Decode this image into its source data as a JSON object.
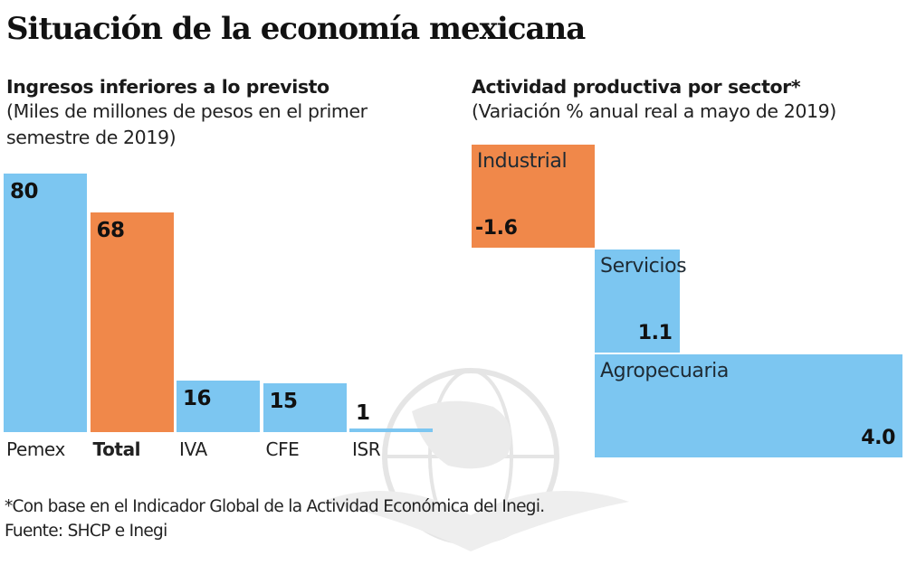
{
  "title": "Situación de la economía mexicana",
  "left_panel": {
    "heading": "Ingresos inferiores a lo previsto",
    "description": "(Miles de millones de pesos en el primer semestre de 2019)"
  },
  "right_panel": {
    "heading": "Actividad productiva por sector*",
    "description": "(Variación % anual real a mayo de 2019)"
  },
  "footnote": "*Con base en el Indicador Global de la Actividad Económica del Inegi.",
  "source": "Fuente: SHCP e Inegi",
  "colors": {
    "blue": "#7cc6f1",
    "orange": "#f0884a"
  },
  "chart_data": [
    {
      "type": "bar",
      "title": "Ingresos inferiores a lo previsto",
      "subtitle": "(Miles de millones de pesos en el primer semestre de 2019)",
      "xlabel": "",
      "ylabel": "Miles de millones de pesos",
      "categories": [
        "Pemex",
        "Total",
        "IVA",
        "CFE",
        "ISR"
      ],
      "values": [
        80,
        68,
        16,
        15,
        1
      ],
      "labels": [
        "80",
        "68",
        "16",
        "15",
        "1"
      ],
      "highlight": [
        "blue",
        "orange",
        "blue",
        "blue",
        "blue"
      ],
      "ylim": [
        0,
        80
      ],
      "grid": false
    },
    {
      "type": "bar",
      "title": "Actividad productiva por sector*",
      "subtitle": "(Variación % anual real a mayo de 2019)",
      "xlabel": "",
      "ylabel": "Variación % anual real",
      "categories": [
        "Industrial",
        "Servicios",
        "Agropecuaria"
      ],
      "values": [
        -1.6,
        1.1,
        4.0
      ],
      "labels": [
        "-1.6",
        "1.1",
        "4.0"
      ],
      "highlight": [
        "orange",
        "blue",
        "blue"
      ],
      "orientation": "waterfall-horizontal",
      "grid": false
    }
  ]
}
